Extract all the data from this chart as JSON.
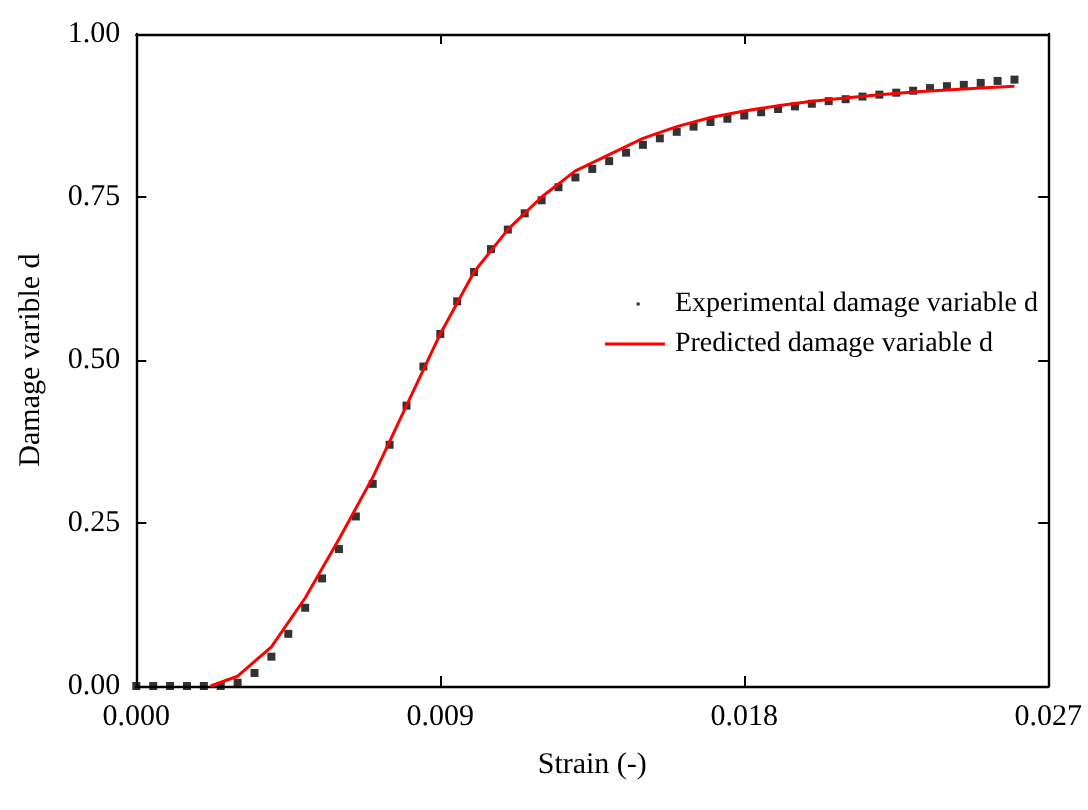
{
  "chart_data": {
    "type": "scatter",
    "xlabel": "Strain (-)",
    "ylabel": "Damage varible d",
    "xlim": [
      0,
      0.027
    ],
    "xticks": [
      {
        "value": 0,
        "label": "0.000"
      },
      {
        "value": 0.009,
        "label": "0.009"
      },
      {
        "value": 0.018,
        "label": "0.018"
      },
      {
        "value": 0.027,
        "label": "0.027"
      }
    ],
    "ylim": [
      0,
      1
    ],
    "yticks": [
      {
        "value": 0,
        "label": "0.00"
      },
      {
        "value": 0.25,
        "label": "0.25"
      },
      {
        "value": 0.5,
        "label": "0.50"
      },
      {
        "value": 0.75,
        "label": "0.75"
      },
      {
        "value": 1,
        "label": "1.00"
      }
    ],
    "grid": false,
    "legend": "right",
    "marker": "square",
    "series": [
      {
        "name": "Experimental damage variable d",
        "color": "#000000",
        "x": [
          0,
          0.0005,
          0.001,
          0.0015,
          0.002,
          0.0025,
          0.003,
          0.0035,
          0.004,
          0.0045,
          0.005,
          0.0055,
          0.006,
          0.0065,
          0.007,
          0.0075,
          0.008,
          0.0085,
          0.009,
          0.0095,
          0.01,
          0.0105,
          0.011,
          0.0115,
          0.012,
          0.0125,
          0.013,
          0.0135,
          0.014,
          0.0145,
          0.015,
          0.0155,
          0.016,
          0.0165,
          0.017,
          0.0175,
          0.018,
          0.0185,
          0.019,
          0.0195,
          0.02,
          0.0205,
          0.021,
          0.0215,
          0.022,
          0.0225,
          0.023,
          0.0235,
          0.024,
          0.0245,
          0.025,
          0.0255,
          0.026
        ],
        "values": [
          0,
          0,
          0,
          0,
          0,
          0,
          0.005,
          0.02,
          0.045,
          0.08,
          0.12,
          0.165,
          0.21,
          0.26,
          0.31,
          0.37,
          0.43,
          0.49,
          0.54,
          0.59,
          0.635,
          0.67,
          0.7,
          0.725,
          0.745,
          0.765,
          0.78,
          0.793,
          0.805,
          0.818,
          0.83,
          0.84,
          0.85,
          0.858,
          0.865,
          0.87,
          0.875,
          0.88,
          0.885,
          0.889,
          0.893,
          0.897,
          0.9,
          0.904,
          0.907,
          0.91,
          0.913,
          0.917,
          0.92,
          0.922,
          0.925,
          0.928,
          0.93
        ]
      },
      {
        "name": "Predicted damage variable d",
        "type": "line",
        "marker": "none",
        "line_style": "solid",
        "color": "#ff0000",
        "x": [
          0.0022,
          0.003,
          0.004,
          0.005,
          0.006,
          0.007,
          0.008,
          0.009,
          0.01,
          0.011,
          0.012,
          0.013,
          0.014,
          0.015,
          0.016,
          0.017,
          0.018,
          0.019,
          0.02,
          0.021,
          0.022,
          0.023,
          0.024,
          0.025,
          0.026
        ],
        "values": [
          0,
          0.015,
          0.06,
          0.135,
          0.225,
          0.32,
          0.43,
          0.54,
          0.635,
          0.7,
          0.75,
          0.79,
          0.815,
          0.84,
          0.858,
          0.872,
          0.882,
          0.89,
          0.897,
          0.902,
          0.907,
          0.911,
          0.914,
          0.917,
          0.92
        ]
      }
    ]
  }
}
